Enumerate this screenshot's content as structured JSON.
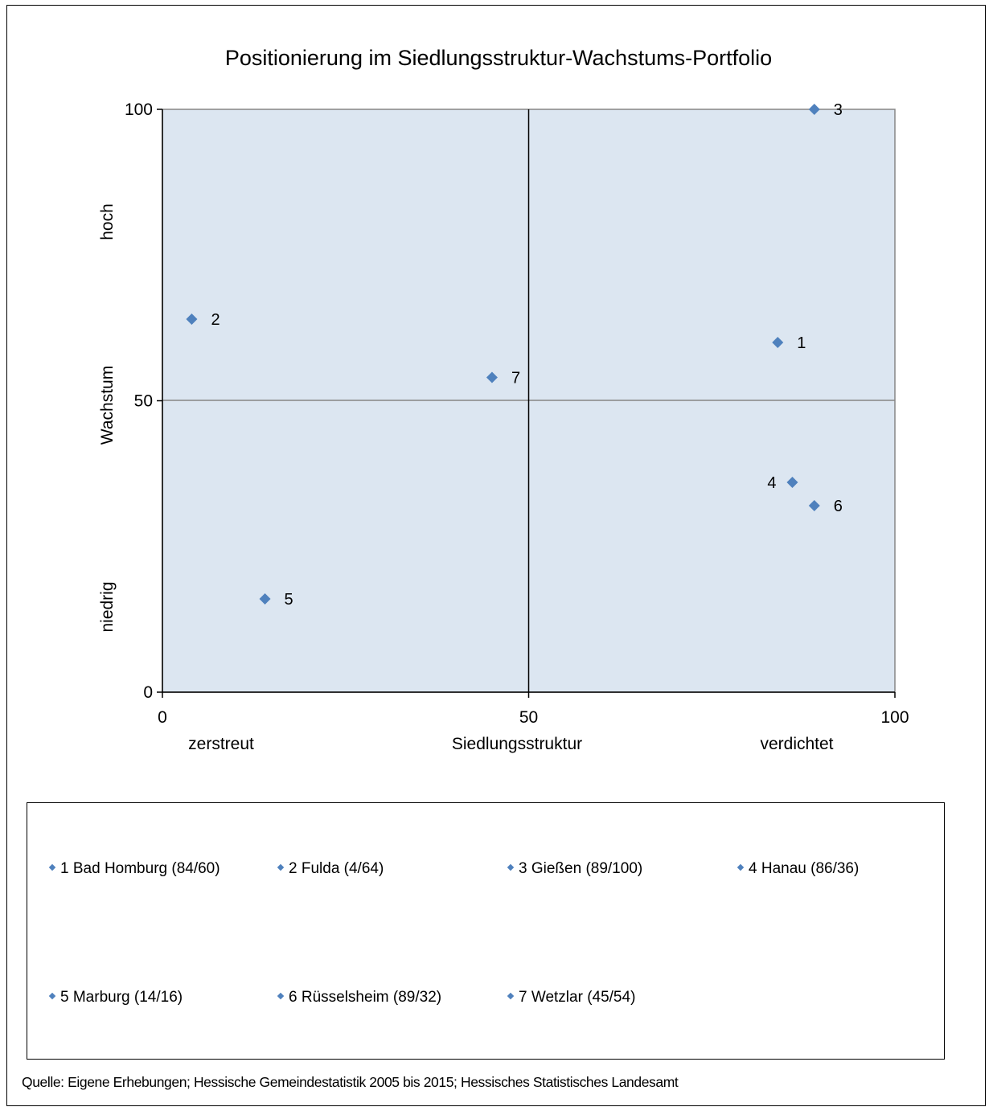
{
  "chart_data": {
    "type": "scatter",
    "title": "Positionierung im Siedlungsstruktur-Wachstums-Portfolio",
    "xlabel": "Siedlungsstruktur",
    "ylabel": "Wachstum",
    "x_low_label": "zerstreut",
    "x_high_label": "verdichtet",
    "y_high_label": "hoch",
    "y_low_label": "niedrig",
    "xlim": [
      0,
      100
    ],
    "ylim": [
      0,
      100
    ],
    "x_ticks": [
      "0",
      "50",
      "100"
    ],
    "y_ticks": [
      "0",
      "50",
      "100"
    ],
    "quadrant_lines": {
      "x": 50,
      "y": 50
    },
    "grid": false,
    "marker_color": "#4f81bd",
    "plot_background": "#dce6f1",
    "points": [
      {
        "label": "1",
        "name": "Bad Homburg (84/60)",
        "x": 84,
        "y": 60,
        "label_side": "right"
      },
      {
        "label": "2",
        "name": "Fulda (4/64)",
        "x": 4,
        "y": 64,
        "label_side": "right"
      },
      {
        "label": "3",
        "name": "Gießen (89/100)",
        "x": 89,
        "y": 100,
        "label_side": "right"
      },
      {
        "label": "4",
        "name": "Hanau (86/36)",
        "x": 86,
        "y": 36,
        "label_side": "left"
      },
      {
        "label": "5",
        "name": "Marburg (14/16)",
        "x": 14,
        "y": 16,
        "label_side": "right"
      },
      {
        "label": "6",
        "name": "Rüsselsheim (89/32)",
        "x": 89,
        "y": 32,
        "label_side": "right"
      },
      {
        "label": "7",
        "name": "Wetzlar (45/54)",
        "x": 45,
        "y": 54,
        "label_side": "right"
      }
    ],
    "legend_placement": "bottom"
  },
  "source": "Quelle: Eigene Erhebungen; Hessische Gemeindestatistik 2005 bis 2015; Hessisches Statistisches Landesamt"
}
